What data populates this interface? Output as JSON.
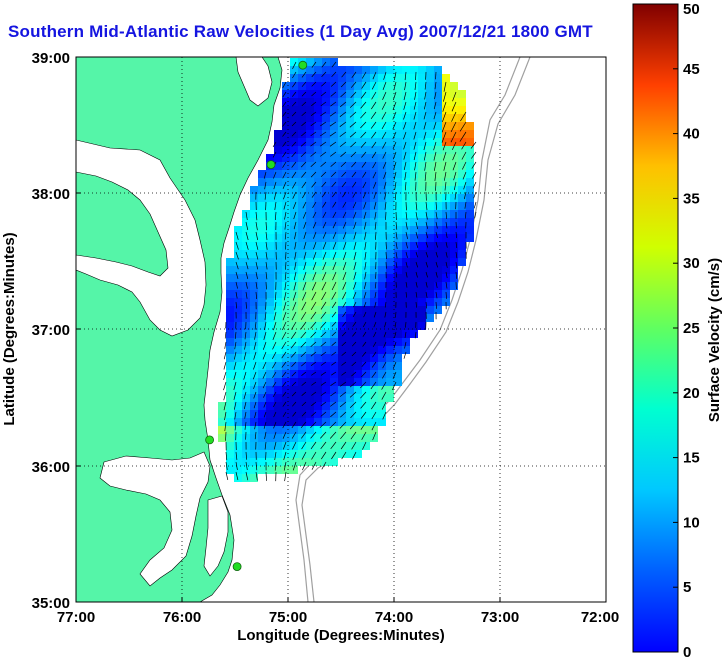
{
  "title": "Southern Mid-Atlantic Raw Velocities (1 Day Avg) 2007/12/21 1800 GMT",
  "xlabel": "Longitude (Degrees:Minutes)",
  "ylabel": "Latitude (Degrees:Minutes)",
  "x_ticks": [
    "77:00",
    "76:00",
    "75:00",
    "74:00",
    "73:00",
    "72:00"
  ],
  "y_ticks": [
    "39:00",
    "38:00",
    "37:00",
    "36:00",
    "35:00"
  ],
  "colorbar": {
    "label": "Surface Velocity (cm/s)",
    "min": 0,
    "max": 50,
    "ticks": [
      "0",
      "5",
      "10",
      "15",
      "20",
      "25",
      "30",
      "35",
      "40",
      "45",
      "50"
    ],
    "colormap": "jet"
  },
  "colors": {
    "land": "#55f5a8",
    "water": "#ffffff",
    "title": "#1515e0",
    "station": "#22dd22",
    "bathymetry": "#a0a0a0"
  },
  "map_extent": {
    "lon": [
      -77,
      -72
    ],
    "lat": [
      35,
      39
    ]
  },
  "stations": [
    {
      "lon": -74.86,
      "lat": 38.94
    },
    {
      "lon": -75.16,
      "lat": 38.21
    },
    {
      "lon": -75.74,
      "lat": 36.19
    },
    {
      "lon": -75.48,
      "lat": 35.26
    }
  ]
}
